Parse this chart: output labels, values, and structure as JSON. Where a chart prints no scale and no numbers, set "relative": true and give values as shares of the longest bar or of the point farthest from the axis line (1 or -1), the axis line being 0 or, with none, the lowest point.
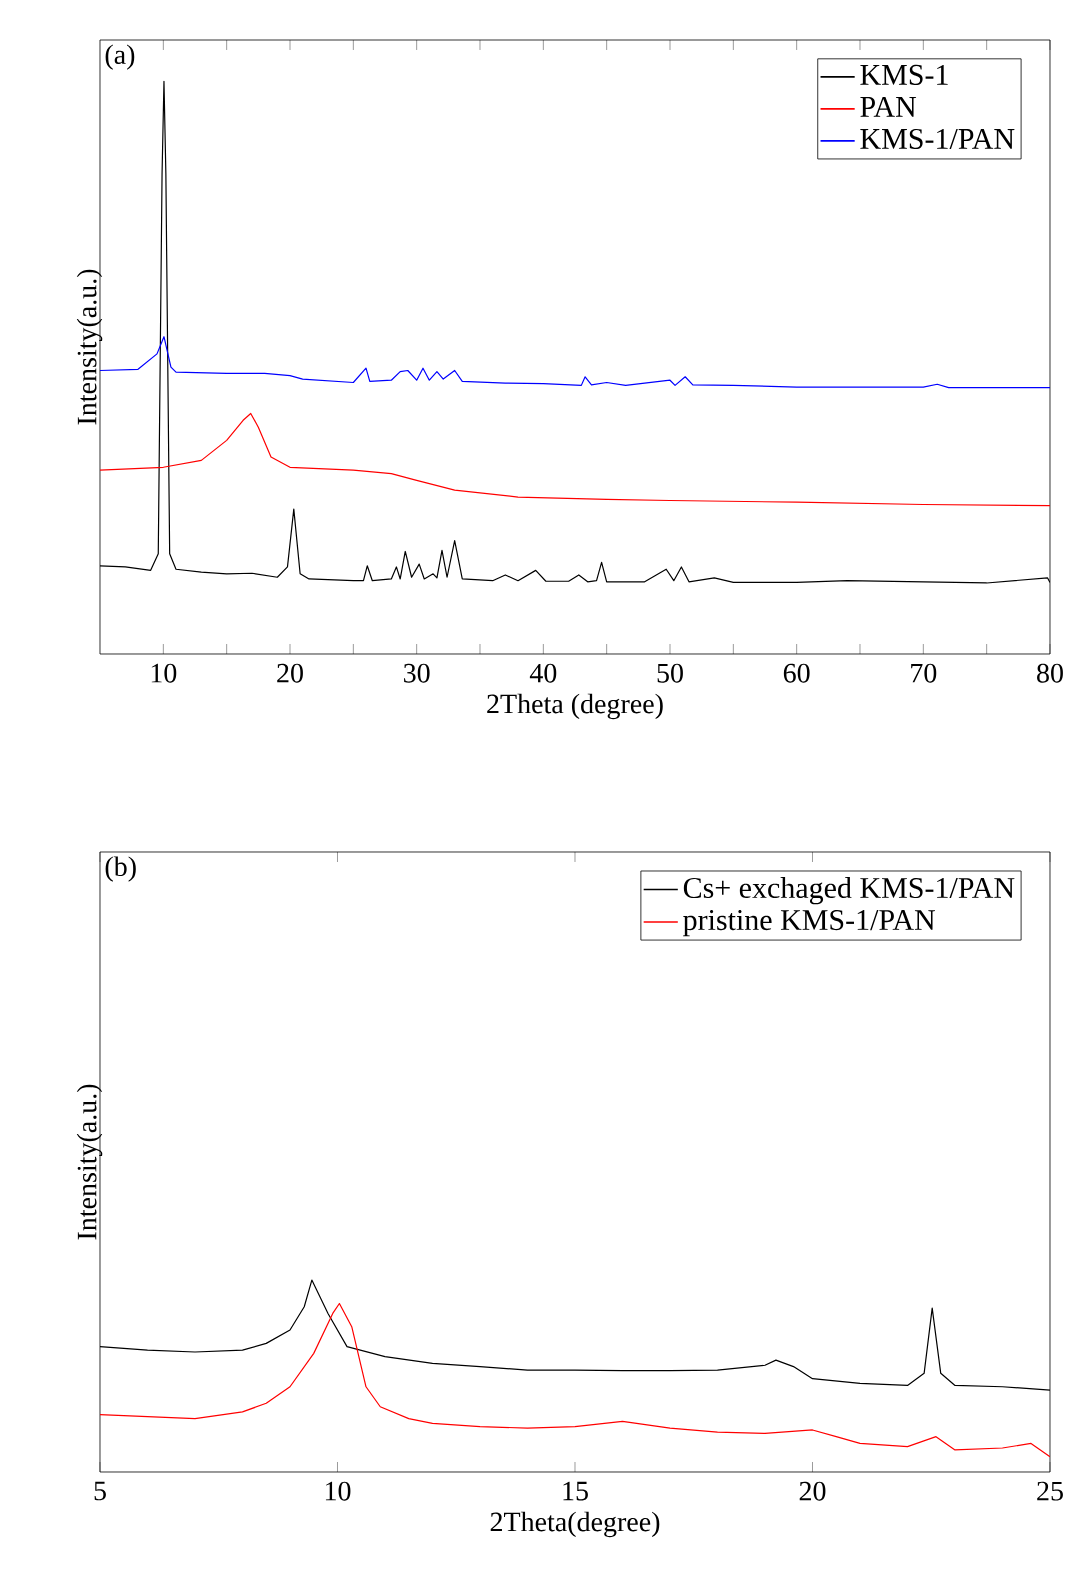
{
  "chart_data": [
    {
      "type": "line",
      "relative": true,
      "xlabel": "2Theta (degree)",
      "ylabel": "Intensity(a.u.)",
      "annotations": [
        "(a)"
      ],
      "legend": "top right",
      "xlim": [
        5,
        80
      ],
      "xticks": [
        10,
        {
          "value": 15,
          "label": null
        },
        20,
        {
          "value": 25,
          "label": null
        },
        30,
        {
          "value": 35,
          "label": null
        },
        40,
        {
          "value": 45,
          "label": null
        },
        50,
        {
          "value": 55,
          "label": null
        },
        60,
        {
          "value": 65,
          "label": null
        },
        70,
        {
          "value": 75,
          "label": null
        },
        80
      ],
      "series": [
        {
          "name": "KMS-1",
          "color": "#000000",
          "x": [
            5,
            7,
            9,
            9.6,
            9.9,
            10.05,
            10.2,
            10.5,
            11,
            13,
            15,
            17,
            19,
            19.8,
            20.3,
            20.8,
            21.5,
            25,
            25.8,
            26.1,
            26.5,
            28,
            28.4,
            28.7,
            29.1,
            29.6,
            30.2,
            30.6,
            31.3,
            31.6,
            32.0,
            32.4,
            33.0,
            33.6,
            36,
            37,
            38,
            39.4,
            40.2,
            42,
            42.8,
            43.5,
            44.2,
            44.6,
            45,
            48,
            49.7,
            50.3,
            50.9,
            51.5,
            53.5,
            55,
            60,
            64,
            70,
            75,
            79.8,
            80
          ],
          "values": [
            0.154,
            0.152,
            0.146,
            0.175,
            0.839,
            1.0,
            0.839,
            0.175,
            0.148,
            0.143,
            0.14,
            0.141,
            0.134,
            0.152,
            0.253,
            0.14,
            0.131,
            0.128,
            0.128,
            0.154,
            0.128,
            0.131,
            0.152,
            0.131,
            0.179,
            0.134,
            0.157,
            0.131,
            0.14,
            0.133,
            0.181,
            0.134,
            0.198,
            0.131,
            0.128,
            0.138,
            0.128,
            0.146,
            0.127,
            0.127,
            0.138,
            0.126,
            0.128,
            0.16,
            0.126,
            0.126,
            0.148,
            0.128,
            0.152,
            0.126,
            0.133,
            0.125,
            0.125,
            0.128,
            0.126,
            0.124,
            0.133,
            0.125
          ]
        },
        {
          "name": "PAN",
          "color": "#ff0000",
          "x": [
            5,
            10,
            13,
            15,
            16.3,
            16.9,
            17.5,
            18.5,
            20,
            25,
            28,
            30,
            33,
            38,
            45,
            50,
            60,
            70,
            80
          ],
          "values": [
            0.321,
            0.326,
            0.338,
            0.373,
            0.408,
            0.42,
            0.396,
            0.344,
            0.326,
            0.321,
            0.315,
            0.303,
            0.286,
            0.274,
            0.27,
            0.268,
            0.265,
            0.261,
            0.259
          ]
        },
        {
          "name": "KMS-1/PAN",
          "color": "#0000ff",
          "x": [
            5,
            8,
            9.5,
            10.05,
            10.6,
            11,
            15,
            18,
            20,
            21,
            25,
            26,
            26.3,
            28,
            28.7,
            29.3,
            30,
            30.5,
            31,
            31.6,
            32.1,
            33,
            33.6,
            37,
            40,
            43,
            43.3,
            43.8,
            45,
            46.5,
            50,
            50.4,
            51.2,
            51.8,
            55,
            60,
            70,
            71.1,
            72,
            80
          ],
          "values": [
            0.495,
            0.497,
            0.524,
            0.554,
            0.501,
            0.492,
            0.49,
            0.49,
            0.486,
            0.48,
            0.474,
            0.499,
            0.476,
            0.478,
            0.493,
            0.495,
            0.478,
            0.499,
            0.478,
            0.493,
            0.48,
            0.495,
            0.476,
            0.473,
            0.472,
            0.469,
            0.484,
            0.47,
            0.474,
            0.469,
            0.478,
            0.469,
            0.484,
            0.47,
            0.469,
            0.466,
            0.466,
            0.471,
            0.465,
            0.465
          ]
        }
      ]
    },
    {
      "type": "line",
      "relative": true,
      "xlabel": "2Theta(degree)",
      "ylabel": "Intensity(a.u.)",
      "annotations": [
        "(b)"
      ],
      "legend": "top right",
      "xlim": [
        5,
        25
      ],
      "xticks": [
        5,
        10,
        15,
        20,
        25
      ],
      "series": [
        {
          "name": "Cs+ exchaged KMS-1/PAN",
          "color": "#000000",
          "x": [
            5,
            6,
            7,
            8,
            8.5,
            9,
            9.3,
            9.46,
            9.8,
            10.2,
            11,
            12,
            13,
            14,
            15,
            16,
            17,
            18,
            19,
            19.23,
            19.6,
            20,
            21,
            22,
            22.35,
            22.52,
            22.7,
            23,
            24,
            25
          ],
          "values": [
            0.653,
            0.635,
            0.625,
            0.635,
            0.67,
            0.74,
            0.861,
            1.0,
            0.826,
            0.653,
            0.601,
            0.566,
            0.549,
            0.531,
            0.531,
            0.528,
            0.528,
            0.531,
            0.556,
            0.583,
            0.549,
            0.486,
            0.462,
            0.451,
            0.514,
            0.854,
            0.514,
            0.451,
            0.444,
            0.427
          ]
        },
        {
          "name": "pristine KMS-1/PAN",
          "color": "#ff0000",
          "x": [
            5,
            6,
            7,
            8,
            8.5,
            9,
            9.5,
            9.9,
            10.04,
            10.3,
            10.6,
            10.9,
            11.5,
            12,
            13,
            14,
            15,
            16,
            17,
            18,
            19,
            20,
            20.5,
            21,
            22,
            22.6,
            23,
            24,
            24.6,
            25
          ],
          "values": [
            0.299,
            0.288,
            0.278,
            0.313,
            0.358,
            0.444,
            0.618,
            0.826,
            0.878,
            0.757,
            0.444,
            0.34,
            0.278,
            0.253,
            0.236,
            0.229,
            0.236,
            0.264,
            0.229,
            0.208,
            0.201,
            0.219,
            0.184,
            0.149,
            0.132,
            0.184,
            0.115,
            0.125,
            0.149,
            0.08
          ]
        }
      ]
    }
  ]
}
